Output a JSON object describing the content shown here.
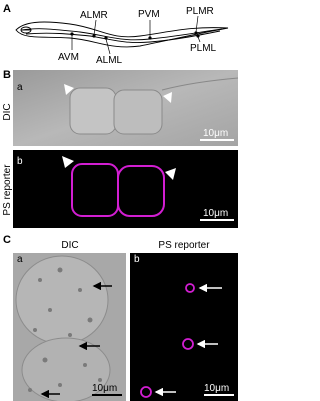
{
  "panel_a": {
    "label": "A",
    "neurons": {
      "almr": "ALMR",
      "pvm": "PVM",
      "plmr": "PLMR",
      "avm": "AVM",
      "alml": "ALML",
      "plml": "PLML"
    }
  },
  "panel_b": {
    "label": "B",
    "sub_a": {
      "label": "a",
      "side_label": "DIC",
      "scale_bar": "10μm"
    },
    "sub_b": {
      "label": "b",
      "side_label": "PS reporter",
      "scale_bar": "10μm"
    }
  },
  "panel_c": {
    "label": "C",
    "sub_a": {
      "label": "a",
      "header": "DIC",
      "scale_bar": "10μm"
    },
    "sub_b": {
      "label": "b",
      "header": "PS reporter",
      "scale_bar": "10μm"
    }
  }
}
